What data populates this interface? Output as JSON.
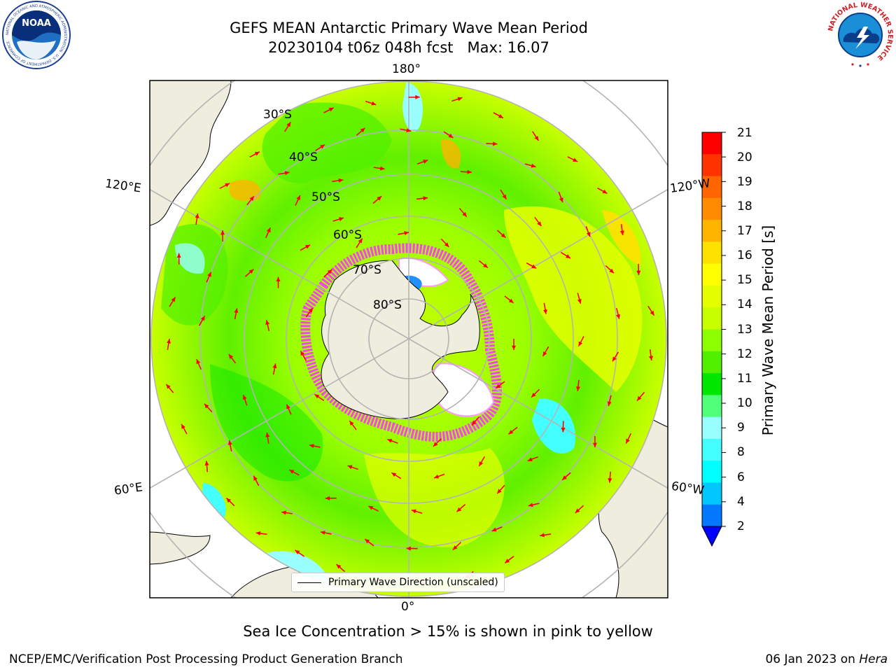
{
  "header": {
    "title_line1": "GEFS MEAN Antarctic Primary Wave Mean Period",
    "title_line2": "20230104 t06z 048h fcst   Max: 16.07"
  },
  "logos": {
    "noaa_text": "NOAA",
    "noaa_ring_text": "NATIONAL OCEANIC AND ATMOSPHERIC ADMINISTRATION · U.S. DEPARTMENT OF COMMERCE",
    "nws_ring_text": "NATIONAL WEATHER SERVICE"
  },
  "map": {
    "projection": "south-polar-stereographic",
    "longitude_labels": {
      "top": "180°",
      "bottom": "0°",
      "left_upper": "120°E",
      "left_lower": "60°E",
      "right_upper": "120°W",
      "right_lower": "60°W"
    },
    "latitude_labels": [
      "30°S",
      "40°S",
      "50°S",
      "60°S",
      "70°S",
      "80°S"
    ],
    "legend_label": "Primary Wave Direction (unscaled)",
    "arrow_color": "#ff0000",
    "land_color": "#efedde",
    "ocean_field_color": "#aaff00"
  },
  "colorbar": {
    "label": "Primary Wave Mean Period [s]",
    "ticks": [
      "21",
      "20",
      "19",
      "18",
      "17",
      "16",
      "15",
      "14",
      "13",
      "12",
      "11",
      "10",
      "9",
      "8",
      "6",
      "4",
      "2"
    ],
    "colors": [
      "#ff0000",
      "#ff3300",
      "#ff6600",
      "#ff8c00",
      "#ffb400",
      "#ffe100",
      "#ffff00",
      "#e5ff00",
      "#c8ff00",
      "#8cff00",
      "#50f000",
      "#00e600",
      "#50ff7a",
      "#9affff",
      "#44ffff",
      "#00ffff",
      "#00c8ff",
      "#0078ff"
    ],
    "extend_color": "#0000ff"
  },
  "footer": {
    "sea_ice_note": "Sea Ice Concentration > 15% is shown in pink to yellow",
    "credit_left": "NCEP/EMC/Verification Post Processing Product Generation Branch",
    "credit_date": "06 Jan 2023 on ",
    "credit_host": "Hera"
  }
}
